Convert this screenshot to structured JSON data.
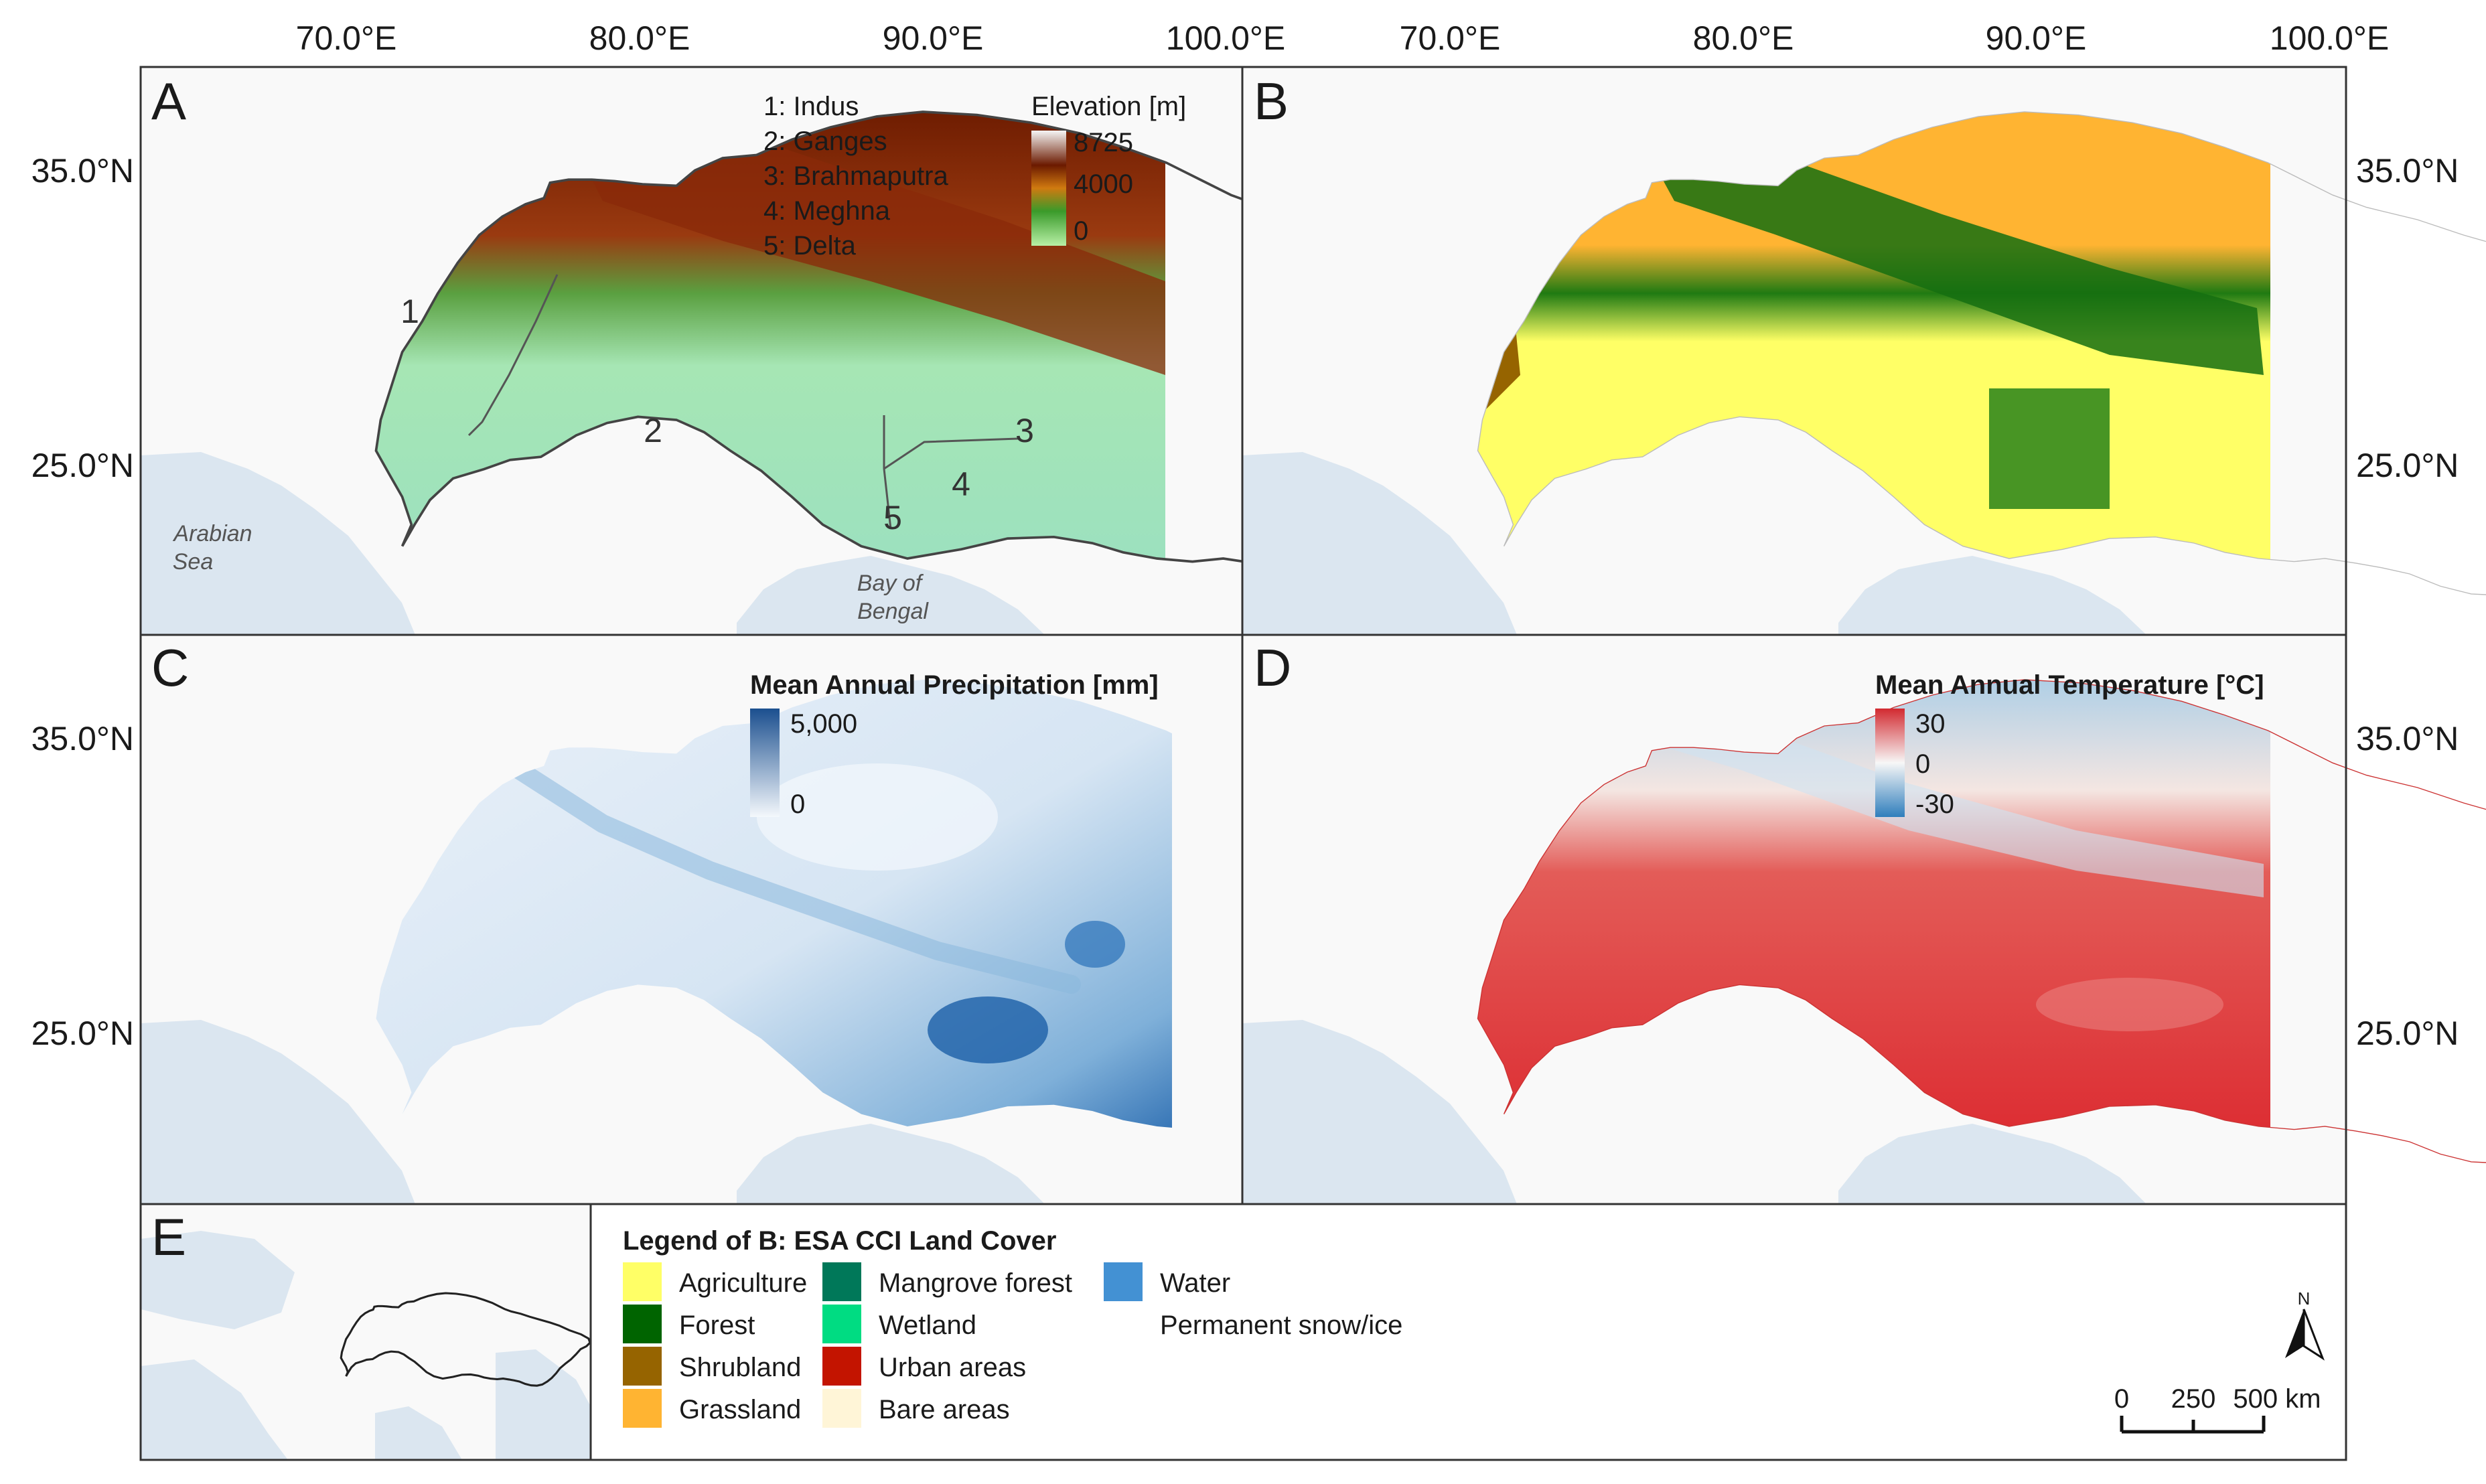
{
  "axes": {
    "lon_labels": [
      "70.0°E",
      "80.0°E",
      "90.0°E",
      "100.0°E"
    ],
    "lat_labels": [
      "35.0°N",
      "25.0°N"
    ]
  },
  "panels": {
    "a": {
      "letter": "A",
      "basins": [
        "1: Indus",
        "2: Ganges",
        "3: Brahmaputra",
        "4: Meghna",
        "5: Delta"
      ],
      "basin_numbers": [
        "1",
        "2",
        "3",
        "4",
        "5"
      ],
      "legend_title": "Elevation [m]",
      "legend_ticks": [
        "8725",
        "4000",
        "0"
      ],
      "sea_labels": {
        "arabian_1": "Arabian",
        "arabian_2": "Sea",
        "bengal_1": "Bay of",
        "bengal_2": "Bengal"
      }
    },
    "b": {
      "letter": "B"
    },
    "c": {
      "letter": "C",
      "legend_title": "Mean Annual Precipitation [mm]",
      "legend_ticks": [
        "5,000",
        "0"
      ]
    },
    "d": {
      "letter": "D",
      "legend_title": "Mean Annual Temperature [°C]",
      "legend_ticks": [
        "30",
        "0",
        "-30"
      ]
    },
    "e": {
      "letter": "E",
      "legend_title": "Legend of B: ESA CCI Land Cover",
      "classes": [
        {
          "label": "Agriculture",
          "color": "#ffff66"
        },
        {
          "label": "Forest",
          "color": "#006400"
        },
        {
          "label": "Shrubland",
          "color": "#966400"
        },
        {
          "label": "Grassland",
          "color": "#ffb432"
        },
        {
          "label": "Mangrove forest",
          "color": "#007859"
        },
        {
          "label": "Wetland",
          "color": "#00dc82"
        },
        {
          "label": "Urban areas",
          "color": "#c31400"
        },
        {
          "label": "Bare areas",
          "color": "#fff5d7"
        },
        {
          "label": "Water",
          "color": "#4391d3"
        },
        {
          "label": "Permanent snow/ice",
          "color": "#ffffff"
        }
      ],
      "north_label": "N",
      "scale_labels": [
        "0",
        "250",
        "500 km"
      ]
    }
  },
  "colors": {
    "ocean": "#dbe6f0",
    "land": "#f9f9f9",
    "frame": "#333333"
  }
}
